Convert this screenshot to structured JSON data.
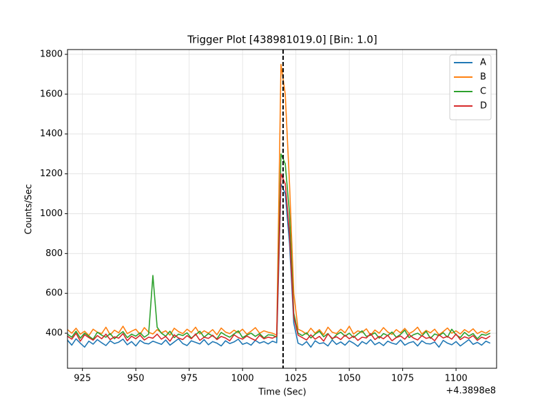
{
  "chart_data": {
    "type": "line",
    "title": "Trigger Plot [438981019.0] [Bin: 1.0]",
    "x_label": "Time (Sec)",
    "y_label": "Counts/Sec",
    "x_offset_label": "+4.3898e8",
    "xlim": [
      918,
      1119
    ],
    "ylim": [
      224,
      1824
    ],
    "xticks": [
      925,
      950,
      975,
      1000,
      1025,
      1050,
      1075,
      1100
    ],
    "yticks": [
      400,
      600,
      800,
      1000,
      1200,
      1400,
      1600,
      1800
    ],
    "grid": true,
    "legend": "upper right",
    "vline": {
      "x": 1019,
      "color": "#000000"
    },
    "x": [
      918,
      920,
      922,
      924,
      926,
      928,
      930,
      932,
      934,
      936,
      938,
      940,
      942,
      944,
      946,
      948,
      950,
      952,
      954,
      956,
      958,
      960,
      962,
      964,
      966,
      968,
      970,
      972,
      974,
      976,
      978,
      980,
      982,
      984,
      986,
      988,
      990,
      992,
      994,
      996,
      998,
      1000,
      1002,
      1004,
      1006,
      1008,
      1010,
      1012,
      1014,
      1016,
      1018,
      1020,
      1022,
      1024,
      1026,
      1028,
      1030,
      1032,
      1034,
      1036,
      1038,
      1040,
      1042,
      1044,
      1046,
      1048,
      1050,
      1052,
      1054,
      1056,
      1058,
      1060,
      1062,
      1064,
      1066,
      1068,
      1070,
      1072,
      1074,
      1076,
      1078,
      1080,
      1082,
      1084,
      1086,
      1088,
      1090,
      1092,
      1094,
      1096,
      1098,
      1100,
      1102,
      1104,
      1106,
      1108,
      1110,
      1112,
      1114,
      1116
    ],
    "series": [
      {
        "name": "A",
        "color": "#1f77b4",
        "values": [
          365,
          340,
          372,
          350,
          330,
          360,
          345,
          368,
          352,
          338,
          362,
          348,
          355,
          370,
          342,
          358,
          336,
          364,
          350,
          346,
          360,
          352,
          344,
          366,
          340,
          356,
          372,
          348,
          338,
          362,
          354,
          346,
          368,
          342,
          358,
          350,
          336,
          362,
          348,
          356,
          370,
          344,
          352,
          340,
          364,
          350,
          358,
          346,
          360,
          352,
          1150,
          1100,
          850,
          450,
          350,
          340,
          358,
          330,
          362,
          348,
          352,
          336,
          366,
          344,
          356,
          340,
          362,
          350,
          334,
          358,
          346,
          368,
          342,
          354,
          338,
          360,
          350,
          344,
          366,
          340,
          352,
          358,
          336,
          362,
          348,
          346,
          356,
          330,
          364,
          350,
          342,
          358,
          336,
          352,
          368,
          344,
          354,
          340,
          360,
          350
        ]
      },
      {
        "name": "B",
        "color": "#ff7f0e",
        "values": [
          418,
          400,
          425,
          395,
          410,
          388,
          420,
          405,
          398,
          430,
          392,
          415,
          402,
          435,
          398,
          410,
          420,
          394,
          428,
          405,
          396,
          418,
          402,
          412,
          390,
          425,
          408,
          398,
          420,
          404,
          430,
          396,
          412,
          400,
          418,
          392,
          426,
          406,
          398,
          415,
          402,
          420,
          395,
          410,
          428,
          400,
          412,
          405,
          400,
          390,
          1750,
          1600,
          1150,
          600,
          420,
          410,
          395,
          425,
          400,
          418,
          392,
          430,
          405,
          398,
          420,
          402,
          435,
          396,
          412,
          404,
          422,
          390,
          416,
          400,
          428,
          406,
          394,
          418,
          402,
          424,
          398,
          410,
          430,
          396,
          414,
          402,
          420,
          392,
          408,
          426,
          400,
          412,
          396,
          418,
          404,
          422,
          398,
          410,
          400,
          415
        ]
      },
      {
        "name": "C",
        "color": "#2ca02c",
        "values": [
          395,
          380,
          410,
          375,
          400,
          385,
          370,
          405,
          390,
          380,
          398,
          372,
          392,
          408,
          378,
          395,
          385,
          402,
          380,
          395,
          690,
          430,
          400,
          385,
          410,
          378,
          395,
          388,
          402,
          375,
          392,
          410,
          380,
          398,
          386,
          372,
          404,
          390,
          380,
          396,
          412,
          378,
          390,
          400,
          384,
          398,
          376,
          392,
          390,
          380,
          1300,
          1250,
          1000,
          500,
          400,
          388,
          402,
          376,
          395,
          410,
          382,
          398,
          370,
          392,
          405,
          385,
          400,
          378,
          396,
          412,
          384,
          390,
          402,
          375,
          398,
          388,
          406,
          380,
          394,
          415,
          378,
          392,
          400,
          386,
          410,
          374,
          396,
          388,
          402,
          380,
          420,
          392,
          378,
          404,
          386,
          398,
          372,
          394,
          390,
          400
        ]
      },
      {
        "name": "D",
        "color": "#d62728",
        "values": [
          385,
          370,
          400,
          360,
          392,
          378,
          365,
          388,
          372,
          395,
          368,
          382,
          375,
          398,
          362,
          385,
          372,
          390,
          366,
          380,
          375,
          395,
          370,
          384,
          360,
          392,
          376,
          368,
          388,
          372,
          396,
          364,
          380,
          374,
          390,
          368,
          384,
          376,
          362,
          392,
          378,
          370,
          386,
          374,
          364,
          390,
          372,
          380,
          375,
          385,
          1200,
          1150,
          900,
          480,
          390,
          378,
          366,
          392,
          370,
          384,
          360,
          396,
          374,
          382,
          368,
          390,
          372,
          386,
          364,
          380,
          376,
          398,
          368,
          384,
          372,
          390,
          362,
          378,
          386,
          370,
          394,
          376,
          366,
          388,
          374,
          380,
          362,
          392,
          376,
          384,
          370,
          396,
          368,
          382,
          374,
          388,
          364,
          380,
          372,
          386
        ]
      }
    ]
  }
}
